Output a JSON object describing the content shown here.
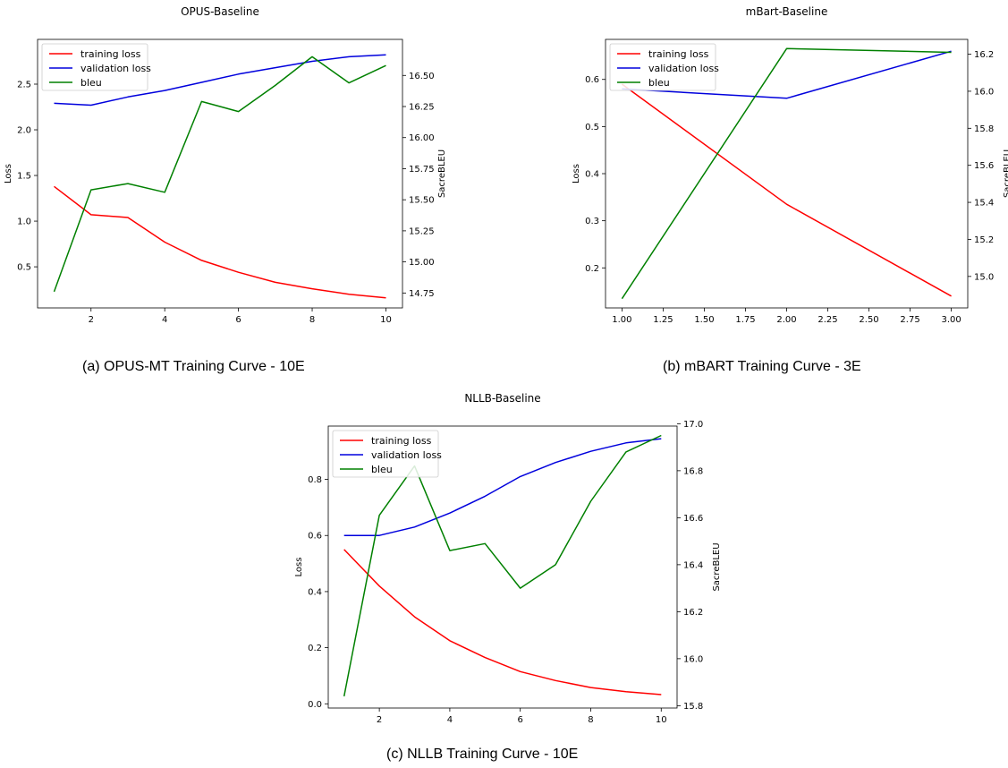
{
  "captions": {
    "a": "(a) OPUS-MT Training Curve - 10E",
    "b": "(b) mBART Training Curve - 3E",
    "c": "(c) NLLB Training Curve - 10E"
  },
  "colors": {
    "training_loss": "#ff0000",
    "validation_loss": "#0000dd",
    "bleu": "#008000"
  },
  "chart_data": [
    {
      "id": "opus",
      "type": "line",
      "title": "OPUS-Baseline",
      "xlabel": "",
      "ylabel": "Loss",
      "y2label": "SacreBLEU",
      "grid": false,
      "legend": "top-left",
      "xlim": [
        0.55,
        10.45
      ],
      "ylim": [
        0.05,
        2.99
      ],
      "y2lim": [
        14.63,
        16.79
      ],
      "xticks": [
        2,
        4,
        6,
        8,
        10
      ],
      "yticks": [
        0.5,
        1.0,
        1.5,
        2.0,
        2.5
      ],
      "ytick_labels": [
        "0.5",
        "1.0",
        "1.5",
        "2.0",
        "2.5"
      ],
      "y2ticks": [
        14.75,
        15.0,
        15.25,
        15.5,
        15.75,
        16.0,
        16.25,
        16.5
      ],
      "y2tick_labels": [
        "14.75",
        "15.00",
        "15.25",
        "15.50",
        "15.75",
        "16.00",
        "16.25",
        "16.50"
      ],
      "x": [
        1,
        2,
        3,
        4,
        5,
        6,
        7,
        8,
        9,
        10
      ],
      "series": [
        {
          "name": "training loss",
          "axis": "left",
          "values": [
            1.38,
            1.07,
            1.04,
            0.77,
            0.57,
            0.44,
            0.33,
            0.26,
            0.2,
            0.16
          ]
        },
        {
          "name": "validation loss",
          "axis": "left",
          "values": [
            2.29,
            2.27,
            2.36,
            2.43,
            2.52,
            2.61,
            2.68,
            2.75,
            2.8,
            2.82
          ]
        },
        {
          "name": "bleu",
          "axis": "right",
          "values": [
            14.76,
            15.58,
            15.63,
            15.56,
            16.29,
            16.21,
            16.42,
            16.65,
            16.44,
            16.58
          ]
        }
      ]
    },
    {
      "id": "mbart",
      "type": "line",
      "title": "mBart-Baseline",
      "xlabel": "",
      "ylabel": "Loss",
      "y2label": "SacreBLEU",
      "grid": false,
      "legend": "top-left",
      "xlim": [
        0.9,
        3.1
      ],
      "ylim": [
        0.115,
        0.685
      ],
      "y2lim": [
        14.83,
        16.28
      ],
      "xticks": [
        1.0,
        1.25,
        1.5,
        1.75,
        2.0,
        2.25,
        2.5,
        2.75,
        3.0
      ],
      "xtick_labels": [
        "1.00",
        "1.25",
        "1.50",
        "1.75",
        "2.00",
        "2.25",
        "2.50",
        "2.75",
        "3.00"
      ],
      "yticks": [
        0.2,
        0.3,
        0.4,
        0.5,
        0.6
      ],
      "ytick_labels": [
        "0.2",
        "0.3",
        "0.4",
        "0.5",
        "0.6"
      ],
      "y2ticks": [
        15.0,
        15.2,
        15.4,
        15.6,
        15.8,
        16.0,
        16.2
      ],
      "y2tick_labels": [
        "15.0",
        "15.2",
        "15.4",
        "15.6",
        "15.8",
        "16.0",
        "16.2"
      ],
      "x": [
        1,
        2,
        3
      ],
      "series": [
        {
          "name": "training loss",
          "axis": "left",
          "values": [
            0.59,
            0.335,
            0.14
          ]
        },
        {
          "name": "validation loss",
          "axis": "left",
          "values": [
            0.58,
            0.56,
            0.66
          ]
        },
        {
          "name": "bleu",
          "axis": "right",
          "values": [
            14.88,
            16.23,
            16.21
          ]
        }
      ]
    },
    {
      "id": "nllb",
      "type": "line",
      "title": "NLLB-Baseline",
      "xlabel": "",
      "ylabel": "Loss",
      "y2label": "SacreBLEU",
      "grid": false,
      "legend": "top-left",
      "xlim": [
        0.55,
        10.45
      ],
      "ylim": [
        -0.015,
        0.99
      ],
      "y2lim": [
        15.79,
        16.99
      ],
      "xticks": [
        2,
        4,
        6,
        8,
        10
      ],
      "yticks": [
        0.0,
        0.2,
        0.4,
        0.6,
        0.8
      ],
      "ytick_labels": [
        "0.0",
        "0.2",
        "0.4",
        "0.6",
        "0.8"
      ],
      "y2ticks": [
        15.8,
        16.0,
        16.2,
        16.4,
        16.6,
        16.8,
        17.0
      ],
      "y2tick_labels": [
        "15.8",
        "16.0",
        "16.2",
        "16.4",
        "16.6",
        "16.8",
        "17.0"
      ],
      "x": [
        1,
        2,
        3,
        4,
        5,
        6,
        7,
        8,
        9,
        10
      ],
      "series": [
        {
          "name": "training loss",
          "axis": "left",
          "values": [
            0.55,
            0.42,
            0.31,
            0.225,
            0.165,
            0.115,
            0.083,
            0.058,
            0.043,
            0.033
          ]
        },
        {
          "name": "validation loss",
          "axis": "left",
          "values": [
            0.6,
            0.6,
            0.63,
            0.68,
            0.74,
            0.81,
            0.86,
            0.9,
            0.93,
            0.945
          ]
        },
        {
          "name": "bleu",
          "axis": "right",
          "values": [
            15.84,
            16.61,
            16.82,
            16.46,
            16.49,
            16.3,
            16.4,
            16.67,
            16.88,
            16.95
          ]
        }
      ]
    }
  ]
}
